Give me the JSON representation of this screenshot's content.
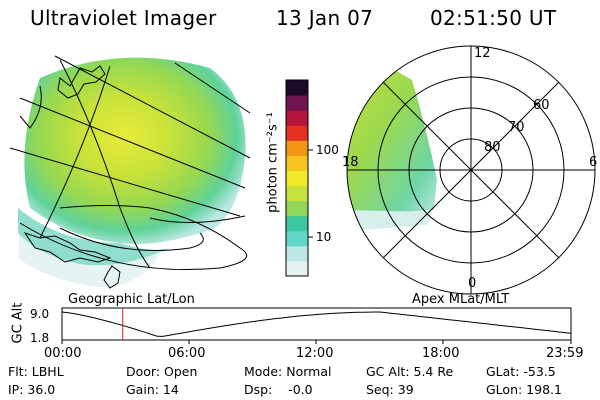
{
  "header": {
    "title": "Ultraviolet Imager",
    "date": "13 Jan 07",
    "time": "02:51:50 UT"
  },
  "colorbar": {
    "unit_label": "photon cm⁻²s⁻¹",
    "ticks": [
      "100",
      "10"
    ],
    "colors": [
      "#e6f2f2",
      "#bde6e6",
      "#5fd6c8",
      "#39c8a0",
      "#8fd65a",
      "#c6e23c",
      "#f0ea28",
      "#f5c41e",
      "#f09614",
      "#e0321e",
      "#b4143c",
      "#6e1450",
      "#1e0a28"
    ]
  },
  "polar_plot": {
    "mlt_labels": {
      "top": "12",
      "left": "18",
      "right": "6",
      "bottom": "0"
    },
    "lat_labels": [
      "60",
      "70",
      "80"
    ]
  },
  "timeline": {
    "left_title": "Geographic Lat/Lon",
    "right_title": "Apex MLat/MLT",
    "axis_label": "GC Alt",
    "y_ticks": [
      "9.0",
      "1.8"
    ],
    "x_ticks": [
      "00:00",
      "06:00",
      "12:00",
      "18:00",
      "23:59"
    ],
    "current_time_marker": "02:51:50",
    "accent_color": "#cc2222"
  },
  "info": {
    "row1": [
      "Flt: LBHL",
      "Door: Open",
      "Mode: Normal",
      "GC Alt: 5.4 Re",
      "GLat: -53.5"
    ],
    "row2": [
      "IP: 36.0",
      "Gain: 14",
      "Dsp:    -0.0",
      "Seq: 39",
      "GLon: 198.1"
    ]
  }
}
